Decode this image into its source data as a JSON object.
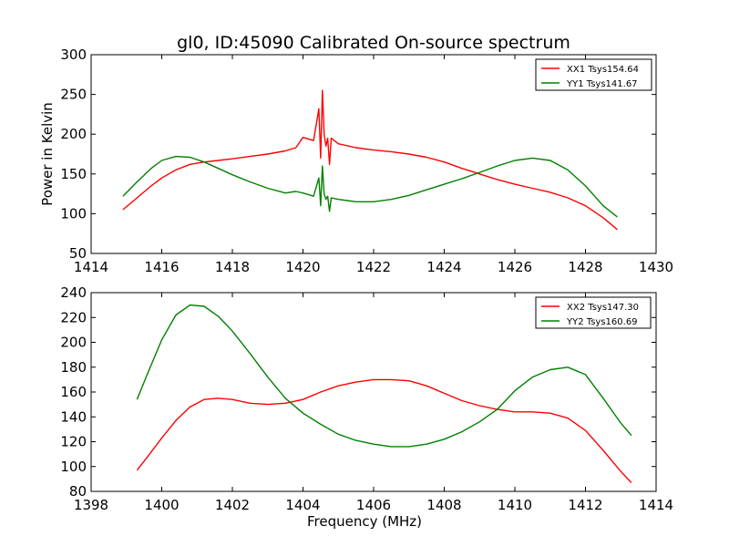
{
  "title": "gl0, ID:45090 Calibrated On-source spectrum",
  "chart_data": [
    {
      "type": "line",
      "title": "gl0, ID:45090 Calibrated On-source spectrum",
      "xlabel": "",
      "ylabel": "Power in Kelvin",
      "xlim": [
        1414,
        1430
      ],
      "ylim": [
        50,
        300
      ],
      "xticks": [
        "1414",
        "1416",
        "1418",
        "1420",
        "1422",
        "1424",
        "1426",
        "1428",
        "1430"
      ],
      "yticks": [
        "50",
        "100",
        "150",
        "200",
        "250",
        "300"
      ],
      "grid": false,
      "legend": "top-right",
      "series": [
        {
          "name": "XX1 Tsys154.64",
          "color": "#ff0000",
          "x": [
            1414.9,
            1415.3,
            1415.7,
            1416.0,
            1416.4,
            1416.8,
            1417.2,
            1417.6,
            1418.0,
            1418.5,
            1419.0,
            1419.5,
            1419.8,
            1420.0,
            1420.3,
            1420.45,
            1420.5,
            1420.55,
            1420.6,
            1420.65,
            1420.7,
            1420.75,
            1420.8,
            1421.0,
            1421.5,
            1422.0,
            1422.5,
            1423.0,
            1423.5,
            1424.0,
            1424.5,
            1425.0,
            1425.5,
            1426.0,
            1426.5,
            1427.0,
            1427.5,
            1428.0,
            1428.5,
            1428.9
          ],
          "y": [
            105,
            120,
            135,
            145,
            155,
            162,
            165,
            167,
            169,
            172,
            175,
            179,
            183,
            196,
            192,
            232,
            170,
            255,
            200,
            185,
            195,
            162,
            195,
            188,
            183,
            180,
            178,
            175,
            171,
            165,
            157,
            150,
            143,
            137,
            132,
            127,
            120,
            110,
            95,
            80
          ],
          "markers": false
        },
        {
          "name": "YY1 Tsys141.67",
          "color": "#008000",
          "x": [
            1414.9,
            1415.3,
            1415.7,
            1416.0,
            1416.4,
            1416.8,
            1417.2,
            1417.6,
            1418.0,
            1418.5,
            1419.0,
            1419.5,
            1419.8,
            1420.0,
            1420.3,
            1420.45,
            1420.5,
            1420.55,
            1420.6,
            1420.65,
            1420.7,
            1420.75,
            1420.8,
            1421.0,
            1421.5,
            1422.0,
            1422.5,
            1423.0,
            1423.5,
            1424.0,
            1424.5,
            1425.0,
            1425.5,
            1426.0,
            1426.5,
            1427.0,
            1427.5,
            1428.0,
            1428.5,
            1428.9
          ],
          "y": [
            122,
            140,
            157,
            167,
            172,
            171,
            165,
            157,
            149,
            140,
            132,
            126,
            128,
            126,
            122,
            145,
            110,
            160,
            125,
            118,
            122,
            103,
            120,
            118,
            115,
            115,
            118,
            123,
            130,
            137,
            144,
            152,
            160,
            167,
            170,
            167,
            155,
            135,
            110,
            96
          ],
          "markers": false
        }
      ]
    },
    {
      "type": "line",
      "title": "",
      "xlabel": "Frequency (MHz)",
      "ylabel": "",
      "xlim": [
        1398,
        1414
      ],
      "ylim": [
        80,
        240
      ],
      "xticks": [
        "1398",
        "1400",
        "1402",
        "1404",
        "1406",
        "1408",
        "1410",
        "1412",
        "1414"
      ],
      "yticks": [
        "80",
        "100",
        "120",
        "140",
        "160",
        "180",
        "200",
        "220",
        "240"
      ],
      "grid": false,
      "legend": "top-right",
      "series": [
        {
          "name": "XX2 Tsys147.30",
          "color": "#ff0000",
          "x": [
            1399.3,
            1399.6,
            1400.0,
            1400.4,
            1400.8,
            1401.2,
            1401.6,
            1402.0,
            1402.5,
            1403.0,
            1403.5,
            1404.0,
            1404.5,
            1405.0,
            1405.5,
            1406.0,
            1406.5,
            1407.0,
            1407.5,
            1408.0,
            1408.5,
            1409.0,
            1409.5,
            1410.0,
            1410.5,
            1411.0,
            1411.5,
            1412.0,
            1412.5,
            1413.0,
            1413.3
          ],
          "y": [
            97,
            108,
            123,
            137,
            148,
            154,
            155,
            154,
            151,
            150,
            151,
            154,
            160,
            165,
            168,
            170,
            170,
            169,
            165,
            159,
            153,
            149,
            146,
            144,
            144,
            143,
            139,
            129,
            113,
            96,
            87
          ],
          "markers": false
        },
        {
          "name": "YY2 Tsys160.69",
          "color": "#008000",
          "x": [
            1399.3,
            1399.6,
            1400.0,
            1400.4,
            1400.8,
            1401.2,
            1401.6,
            1402.0,
            1402.5,
            1403.0,
            1403.5,
            1404.0,
            1404.5,
            1405.0,
            1405.5,
            1406.0,
            1406.5,
            1407.0,
            1407.5,
            1408.0,
            1408.5,
            1409.0,
            1409.5,
            1410.0,
            1410.5,
            1411.0,
            1411.5,
            1412.0,
            1412.5,
            1413.0,
            1413.3
          ],
          "y": [
            154,
            175,
            202,
            222,
            230,
            229,
            221,
            209,
            191,
            172,
            155,
            143,
            134,
            126,
            121,
            118,
            116,
            116,
            118,
            122,
            128,
            136,
            146,
            161,
            172,
            178,
            180,
            174,
            155,
            135,
            125
          ],
          "markers": false
        }
      ]
    }
  ]
}
